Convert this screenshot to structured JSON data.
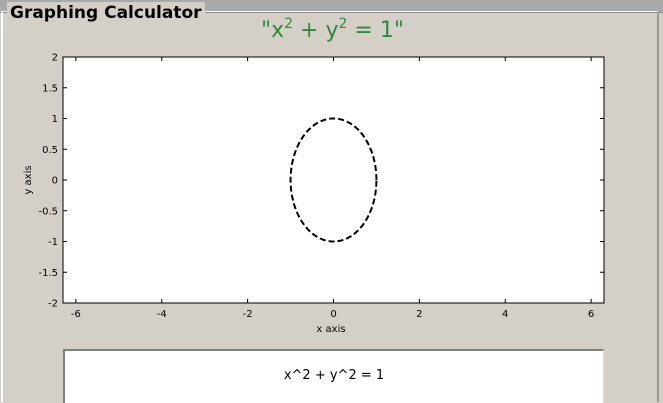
{
  "panel": {
    "title": "Graphing Calculator"
  },
  "plot": {
    "title_parts": [
      "\"x",
      "2",
      " + y",
      "2",
      " = 1\""
    ]
  },
  "input": {
    "value": "x^2 + y^2 = 1"
  },
  "chart_data": {
    "type": "line",
    "xlabel": "x axis",
    "ylabel": "y axis",
    "xlim": [
      -6.3,
      6.3
    ],
    "ylim": [
      -2,
      2
    ],
    "xticks": [
      -6,
      -4,
      -2,
      0,
      2,
      4,
      6
    ],
    "xtick_labels": [
      "-6",
      "-4",
      "-2",
      "0",
      "2",
      "4",
      "6"
    ],
    "yticks": [
      -2,
      -1.5,
      -1,
      -0.5,
      0,
      0.5,
      1,
      1.5,
      2
    ],
    "ytick_labels": [
      "-2",
      "-1.5",
      "-1",
      "-0.5",
      "0",
      "0.5",
      "1",
      "1.5",
      "2"
    ],
    "grid": false,
    "series": [
      {
        "line_style": "dashed",
        "color": "#000000",
        "x": [
          1,
          0.9239,
          0.7071,
          0.3827,
          0,
          -0.3827,
          -0.7071,
          -0.9239,
          -1,
          -0.9239,
          -0.7071,
          -0.3827,
          0,
          0.3827,
          0.7071,
          0.9239,
          1
        ],
        "y": [
          0,
          0.3827,
          0.7071,
          0.9239,
          1,
          0.9239,
          0.7071,
          0.3827,
          0,
          -0.3827,
          -0.7071,
          -0.9239,
          -1,
          -0.9239,
          -0.7071,
          -0.3827,
          0
        ]
      }
    ]
  },
  "colors": {
    "title_green": "#2e8b3a",
    "background": "#d4d0c8"
  }
}
